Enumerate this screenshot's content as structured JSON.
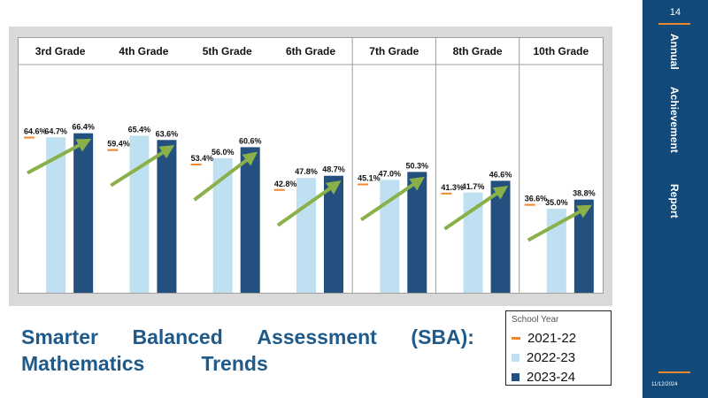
{
  "slide": {
    "title_line1": [
      "Smarter",
      "Balanced",
      "Assessment",
      "(SBA):"
    ],
    "title_line2": [
      "Mathematics",
      "Trends"
    ],
    "page_number": "14",
    "footer_date": "11/12/2024",
    "sidebar_words": [
      "Annual",
      "Achievement",
      "Report"
    ]
  },
  "legend": {
    "title": "School Year",
    "items": [
      {
        "label": "2021-22",
        "color": "#f4862a",
        "marker": "line"
      },
      {
        "label": "2022-23",
        "color": "#bfe0f0",
        "marker": "box"
      },
      {
        "label": "2023-24",
        "color": "#24507f",
        "marker": "box"
      }
    ]
  },
  "colors": {
    "arrow": "#8ab04a",
    "sidebar": "#10497a",
    "title": "#1f5a8a"
  },
  "chart_data": {
    "type": "bar",
    "categories": [
      "3rd Grade",
      "4th Grade",
      "5th Grade",
      "6th Grade",
      "7th Grade",
      "8th Grade",
      "10th Grade"
    ],
    "series": [
      {
        "name": "2021-22",
        "values": [
          64.6,
          59.4,
          53.4,
          42.8,
          45.1,
          41.3,
          36.6
        ],
        "labels": [
          "64.6%",
          "59.4%",
          "53.4%",
          "42.8%",
          "45.1%",
          "41.3%",
          "36.6%"
        ]
      },
      {
        "name": "2022-23",
        "values": [
          64.7,
          65.4,
          56.0,
          47.8,
          47.0,
          41.7,
          35.0
        ],
        "labels": [
          "64.7%",
          "65.4%",
          "56.0%",
          "47.8%",
          "47.0%",
          "41.7%",
          "35.0%"
        ]
      },
      {
        "name": "2023-24",
        "values": [
          66.4,
          63.6,
          60.6,
          48.7,
          50.3,
          46.6,
          38.8
        ],
        "labels": [
          "66.4%",
          "63.6%",
          "60.6%",
          "48.7%",
          "50.3%",
          "46.6%",
          "38.8%"
        ]
      }
    ],
    "ylim": [
      0,
      95
    ],
    "grid": false,
    "legend_position": "bottom-right",
    "trend_arrows": true
  }
}
